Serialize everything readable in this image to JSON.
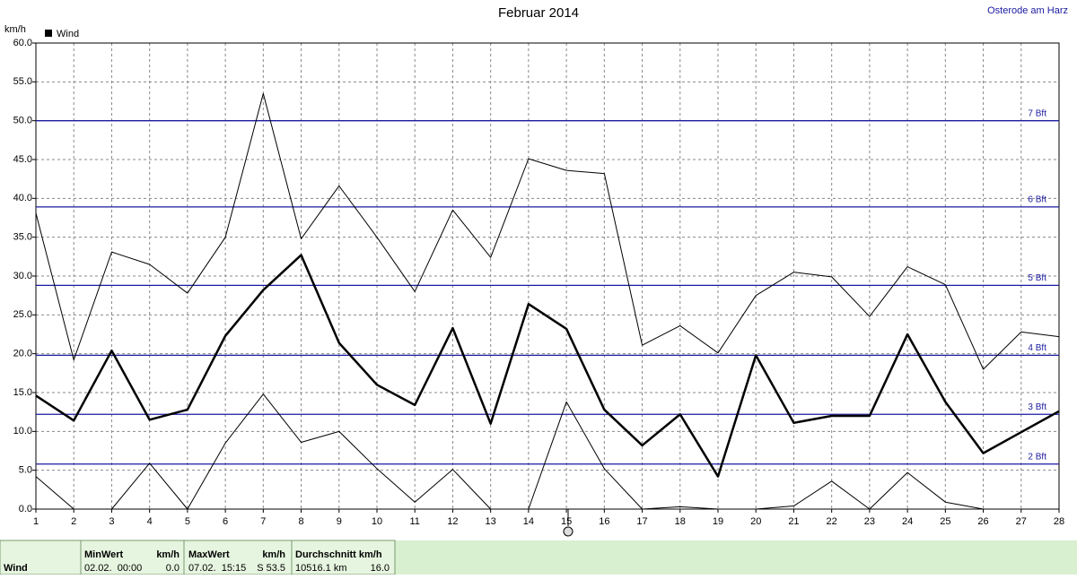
{
  "chart_data": {
    "type": "line",
    "title": "Februar 2014",
    "location": "Osterode am Harz",
    "y_label": "km/h",
    "x": [
      1,
      2,
      3,
      4,
      5,
      6,
      7,
      8,
      9,
      10,
      11,
      12,
      13,
      14,
      15,
      16,
      17,
      18,
      19,
      20,
      21,
      22,
      23,
      24,
      25,
      26,
      27,
      28
    ],
    "xlim": [
      1,
      28
    ],
    "ylim": [
      0,
      60
    ],
    "yticks": [
      {
        "value": 0,
        "label": "0.0"
      },
      {
        "value": 5,
        "label": "5.0"
      },
      {
        "value": 10,
        "label": "10.0"
      },
      {
        "value": 15,
        "label": "15.0"
      },
      {
        "value": 20,
        "label": "20.0"
      },
      {
        "value": 25,
        "label": "25.0"
      },
      {
        "value": 30,
        "label": "30.0"
      },
      {
        "value": 35,
        "label": "35.0"
      },
      {
        "value": 40,
        "label": "40.0"
      },
      {
        "value": 45,
        "label": "45.0"
      },
      {
        "value": 50,
        "label": "50.0"
      },
      {
        "value": 55,
        "label": "55.0"
      },
      {
        "value": 60,
        "label": "60.0"
      }
    ],
    "grid": true,
    "ref_color": "#1a1aa0",
    "ref_lines": [
      {
        "value": 5.8,
        "label": "2 Bft"
      },
      {
        "value": 12.2,
        "label": "3 Bft"
      },
      {
        "value": 19.8,
        "label": "4 Bft"
      },
      {
        "value": 28.8,
        "label": "5 Bft"
      },
      {
        "value": 38.9,
        "label": "6 Bft"
      },
      {
        "value": 50.0,
        "label": "7 Bft"
      }
    ],
    "series": [
      {
        "name": "Wind",
        "color": "#000000",
        "width": 2.5,
        "values": [
          14.6,
          11.4,
          20.4,
          11.5,
          12.8,
          22.3,
          28.2,
          32.7,
          21.4,
          16.0,
          13.4,
          23.3,
          11.0,
          26.4,
          23.2,
          12.8,
          8.2,
          12.2,
          4.2,
          19.8,
          11.1,
          12.0,
          12.0,
          22.5,
          13.8,
          7.2,
          9.9,
          12.6
        ]
      },
      {
        "color": "#000000",
        "width": 1,
        "values": [
          38.1,
          19.2,
          33.1,
          31.5,
          27.8,
          35.0,
          53.5,
          34.8,
          41.6,
          35.0,
          28.0,
          38.5,
          32.4,
          45.1,
          43.6,
          43.2,
          21.1,
          23.6,
          20.1,
          27.5,
          30.5,
          29.9,
          24.8,
          31.2,
          28.9,
          18.0,
          22.8,
          22.2
        ]
      },
      {
        "color": "#000000",
        "width": 1,
        "values": [
          4.2,
          0.0,
          0.0,
          5.9,
          0.0,
          8.5,
          14.8,
          8.6,
          10.0,
          5.2,
          0.9,
          5.1,
          0.0,
          0.0,
          13.8,
          5.2,
          0.0,
          0.3,
          0.0,
          0.0,
          0.4,
          3.6,
          0.0,
          4.7,
          0.9,
          0.0,
          null,
          null
        ]
      }
    ]
  },
  "footer": {
    "row_label": "Wind",
    "headers": [
      "MinWert",
      "km/h",
      "MaxWert",
      "km/h",
      "Durchschnitt km/h"
    ],
    "values": [
      "02.02.  00:00",
      "0.0",
      "07.02.  15:15",
      "S 53.5",
      "10516.1 km",
      "16.0"
    ]
  }
}
